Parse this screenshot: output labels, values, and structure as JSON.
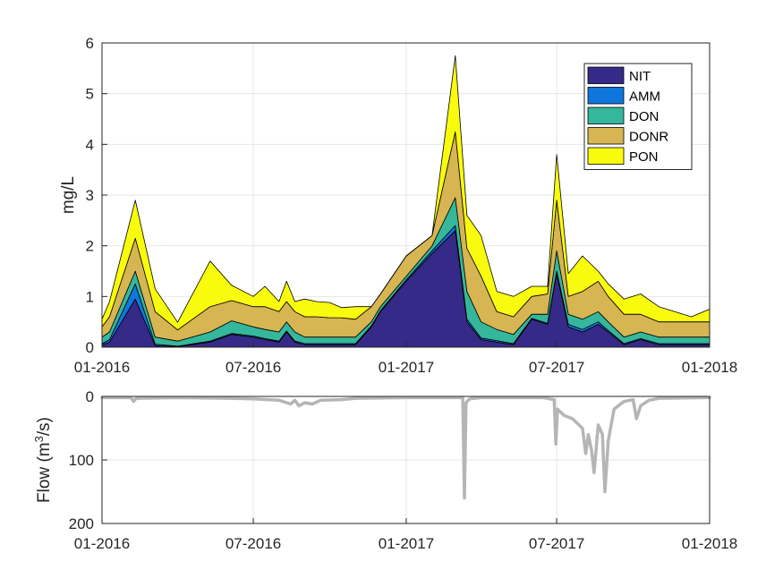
{
  "chart_data": [
    {
      "type": "area",
      "stacked": true,
      "title": "",
      "xlabel": "",
      "ylabel": "mg/L",
      "x_tick_labels": [
        "01-2016",
        "07-2016",
        "01-2017",
        "07-2017",
        "01-2018"
      ],
      "x_tick_dates": [
        "2016-01-01",
        "2016-07-01",
        "2017-01-01",
        "2017-07-01",
        "2018-01-01"
      ],
      "xlim": [
        "2016-01-01",
        "2018-01-01"
      ],
      "ylim": [
        0,
        6
      ],
      "y_ticks": [
        "0",
        "1",
        "2",
        "3",
        "4",
        "5",
        "6"
      ],
      "y_tick_values": [
        0,
        1,
        2,
        3,
        4,
        5,
        6
      ],
      "grid": true,
      "legend_position": "top-right",
      "x": [
        "2016-01-01",
        "2016-01-10",
        "2016-02-10",
        "2016-03-05",
        "2016-04-01",
        "2016-05-10",
        "2016-06-05",
        "2016-07-01",
        "2016-07-15",
        "2016-08-01",
        "2016-08-10",
        "2016-08-20",
        "2016-09-01",
        "2016-09-15",
        "2016-10-01",
        "2016-10-15",
        "2016-11-01",
        "2016-11-20",
        "2016-12-01",
        "2017-01-01",
        "2017-02-01",
        "2017-03-01",
        "2017-03-15",
        "2017-04-01",
        "2017-04-20",
        "2017-05-10",
        "2017-06-01",
        "2017-06-20",
        "2017-07-01",
        "2017-07-15",
        "2017-08-01",
        "2017-08-20",
        "2017-09-01",
        "2017-09-20",
        "2017-10-10",
        "2017-11-01",
        "2017-11-20",
        "2017-12-10",
        "2018-01-01"
      ],
      "series": [
        {
          "name": "NIT",
          "color": "#352a87",
          "values": [
            0.05,
            0.1,
            0.95,
            0.03,
            0.01,
            0.1,
            0.25,
            0.2,
            0.15,
            0.1,
            0.3,
            0.1,
            0.05,
            0.05,
            0.05,
            0.05,
            0.05,
            0.4,
            0.7,
            1.3,
            1.85,
            2.3,
            0.5,
            0.15,
            0.1,
            0.05,
            0.55,
            0.45,
            1.45,
            0.4,
            0.3,
            0.45,
            0.3,
            0.05,
            0.15,
            0.05,
            0.05,
            0.05,
            0.05
          ]
        },
        {
          "name": "AMM",
          "color": "#0f77db",
          "values": [
            0.02,
            0.05,
            0.3,
            0.03,
            0.01,
            0.02,
            0.02,
            0.02,
            0.02,
            0.02,
            0.02,
            0.02,
            0.02,
            0.02,
            0.02,
            0.02,
            0.02,
            0.02,
            0.02,
            0.03,
            0.05,
            0.1,
            0.05,
            0.03,
            0.03,
            0.02,
            0.02,
            0.02,
            0.05,
            0.05,
            0.05,
            0.05,
            0.03,
            0.02,
            0.02,
            0.02,
            0.02,
            0.02,
            0.02
          ]
        },
        {
          "name": "DON",
          "color": "#35b79b",
          "values": [
            0.13,
            0.15,
            0.25,
            0.14,
            0.1,
            0.18,
            0.25,
            0.18,
            0.18,
            0.18,
            0.18,
            0.18,
            0.13,
            0.13,
            0.13,
            0.13,
            0.13,
            0.08,
            0.08,
            0.07,
            0.1,
            0.55,
            0.55,
            0.32,
            0.22,
            0.18,
            0.08,
            0.18,
            0.4,
            0.2,
            0.2,
            0.2,
            0.17,
            0.13,
            0.13,
            0.13,
            0.13,
            0.13,
            0.13
          ]
        },
        {
          "name": "DONR",
          "color": "#d6b552",
          "values": [
            0.2,
            0.3,
            0.65,
            0.5,
            0.22,
            0.5,
            0.4,
            0.4,
            0.45,
            0.4,
            0.4,
            0.4,
            0.4,
            0.4,
            0.38,
            0.38,
            0.35,
            0.3,
            0.25,
            0.4,
            0.2,
            1.3,
            0.85,
            0.9,
            0.35,
            0.35,
            0.35,
            0.4,
            1.0,
            0.35,
            0.55,
            0.6,
            0.5,
            0.45,
            0.35,
            0.3,
            0.3,
            0.3,
            0.3
          ]
        },
        {
          "name": "PON",
          "color": "#f9fb0e",
          "values": [
            0.15,
            0.3,
            0.75,
            0.45,
            0.15,
            0.9,
            0.3,
            0.2,
            0.4,
            0.2,
            0.4,
            0.2,
            0.35,
            0.3,
            0.3,
            0.2,
            0.25,
            0.0,
            0.0,
            0.0,
            0.0,
            1.5,
            0.65,
            0.8,
            0.4,
            0.4,
            0.2,
            0.15,
            0.9,
            0.45,
            0.7,
            0.2,
            0.25,
            0.3,
            0.4,
            0.3,
            0.2,
            0.1,
            0.25
          ]
        }
      ]
    },
    {
      "type": "line",
      "title": "",
      "xlabel": "",
      "ylabel_text": "Flow (m",
      "ylabel_superscript": "3",
      "ylabel_suffix": "/s)",
      "y_reversed": true,
      "x_tick_labels": [
        "01-2016",
        "07-2016",
        "01-2017",
        "07-2017",
        "01-2018"
      ],
      "x_tick_dates": [
        "2016-01-01",
        "2016-07-01",
        "2017-01-01",
        "2017-07-01",
        "2018-01-01"
      ],
      "xlim": [
        "2016-01-01",
        "2018-01-01"
      ],
      "ylim": [
        0,
        200
      ],
      "y_ticks": [
        "0",
        "100",
        "200"
      ],
      "y_tick_values": [
        0,
        100,
        200
      ],
      "grid": true,
      "series": [
        {
          "name": "",
          "color": "#b5b5b5",
          "x": [
            "2016-01-01",
            "2016-02-05",
            "2016-02-08",
            "2016-02-11",
            "2016-04-01",
            "2016-06-01",
            "2016-07-01",
            "2016-08-01",
            "2016-08-15",
            "2016-08-20",
            "2016-08-25",
            "2016-09-01",
            "2016-09-10",
            "2016-09-20",
            "2016-10-15",
            "2016-11-01",
            "2017-01-01",
            "2017-03-01",
            "2017-03-10",
            "2017-03-12",
            "2017-03-14",
            "2017-03-18",
            "2017-04-01",
            "2017-06-15",
            "2017-06-28",
            "2017-06-30",
            "2017-07-02",
            "2017-07-10",
            "2017-07-20",
            "2017-08-01",
            "2017-08-05",
            "2017-08-08",
            "2017-08-12",
            "2017-08-15",
            "2017-08-20",
            "2017-08-25",
            "2017-08-28",
            "2017-09-01",
            "2017-09-08",
            "2017-09-20",
            "2017-10-01",
            "2017-10-05",
            "2017-10-10",
            "2017-10-20",
            "2017-11-01",
            "2018-01-01"
          ],
          "values": [
            2,
            2,
            8,
            3,
            2,
            3,
            4,
            6,
            12,
            6,
            15,
            10,
            12,
            6,
            5,
            3,
            2,
            2,
            2,
            160,
            10,
            4,
            2,
            2,
            5,
            75,
            20,
            30,
            35,
            50,
            90,
            60,
            85,
            120,
            45,
            60,
            150,
            70,
            20,
            8,
            5,
            35,
            15,
            6,
            3,
            2
          ]
        }
      ]
    }
  ]
}
